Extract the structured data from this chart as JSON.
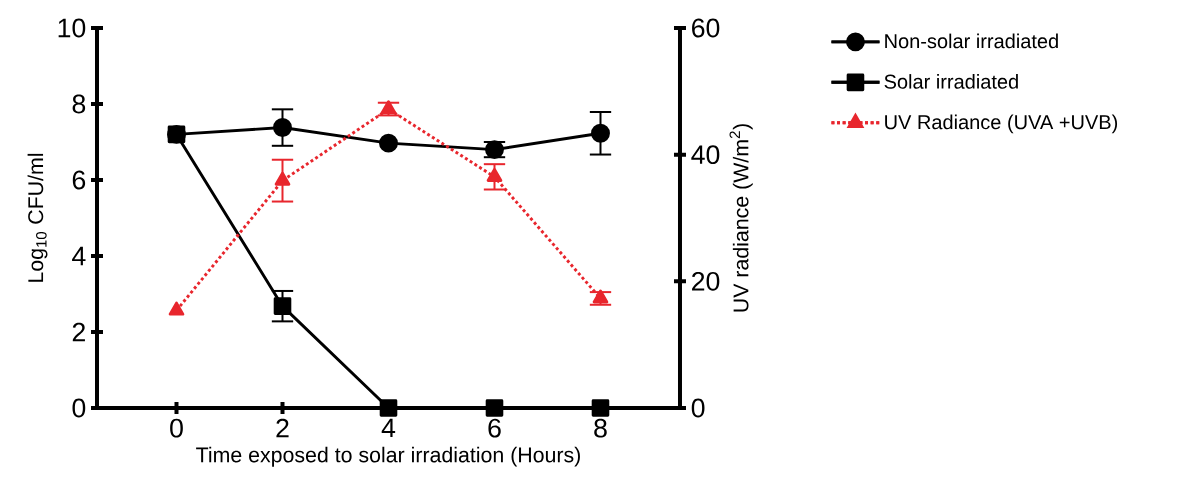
{
  "chart_data": {
    "type": "line",
    "xlabel": "Time exposed to solar irradiation (Hours)",
    "ylabel": "Log$_{10}$ CFU/ml",
    "y2label": "UV radiance (W/m$^{2}$)",
    "x": [
      0,
      2,
      4,
      6,
      8
    ],
    "series": [
      {
        "name": "Non-solar irradiated",
        "color": "#000000",
        "marker": "circle",
        "line_style": "solid",
        "values": [
          7.2,
          7.38,
          6.97,
          6.8,
          7.23
        ],
        "errors": [
          null,
          0.48,
          null,
          0.2,
          0.56
        ]
      },
      {
        "name": "Solar irradiated",
        "color": "#000000",
        "marker": "square",
        "line_style": "solid",
        "values": [
          7.2,
          2.68,
          0,
          0,
          0
        ],
        "errors": [
          null,
          0.4,
          null,
          null,
          null
        ]
      },
      {
        "name": "UV Radiance (UVA +UVB)",
        "color": "#e8262d",
        "marker": "triangle",
        "line_style": "dotted",
        "axis": "y2",
        "values": [
          15.4,
          35.9,
          47.2,
          36.5,
          17.3
        ],
        "errors": [
          null,
          3.3,
          1,
          2,
          1
        ]
      }
    ],
    "xlim": [
      -1.5,
      9.5
    ],
    "xticks": [
      0,
      2,
      4,
      6,
      8
    ],
    "ylim": [
      0,
      10
    ],
    "yticks": [
      0,
      2,
      4,
      6,
      8,
      10
    ],
    "y2lim": [
      0,
      60
    ],
    "y2ticks": [
      0,
      20,
      40,
      60
    ],
    "grid": false,
    "legend": "right"
  }
}
